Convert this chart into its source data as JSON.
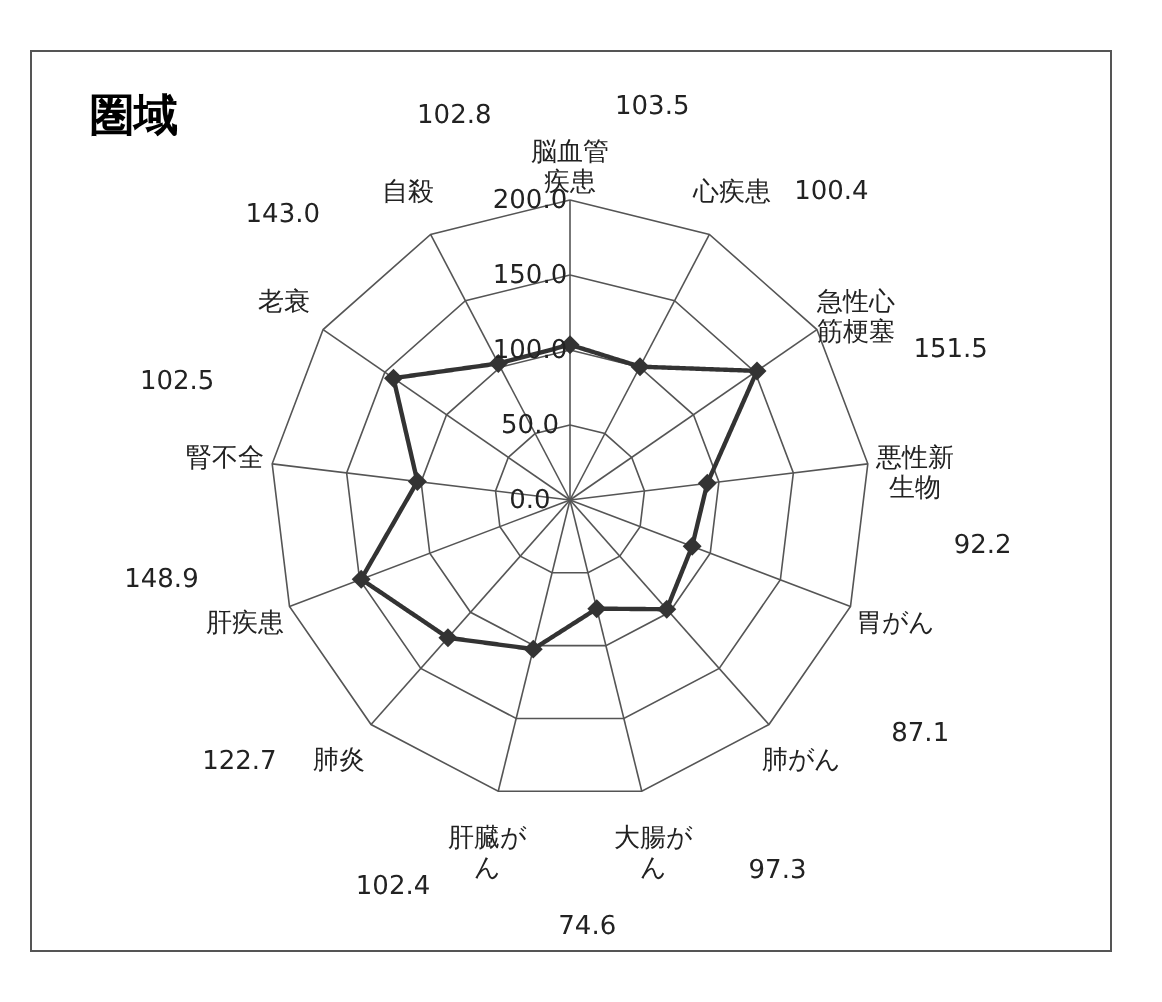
{
  "chart_data": {
    "type": "radar",
    "title": "圏域",
    "categories": [
      "脳血管疾患",
      "心疾患",
      "急性心筋梗塞",
      "悪性新生物",
      "胃がん",
      "肺がん",
      "大腸がん",
      "肝臓がん",
      "肺炎",
      "肝疾患",
      "腎不全",
      "老衰",
      "自殺"
    ],
    "series": [
      {
        "color": "#333333",
        "values": [
          103.5,
          100.4,
          151.5,
          92.2,
          87.1,
          97.3,
          74.6,
          102.4,
          122.7,
          148.9,
          102.5,
          143.0,
          102.8
        ]
      }
    ],
    "annotations": [
      "103.5",
      "100.4",
      "151.5",
      "92.2",
      "87.1",
      "97.3",
      "74.6",
      "102.4",
      "122.7",
      "148.9",
      "102.5",
      "143.0",
      "102.8"
    ],
    "ylim": [
      0,
      200
    ],
    "yticks": [
      {
        "value": 0,
        "label": "0.0"
      },
      {
        "value": 50,
        "label": "50.0"
      },
      {
        "value": 100,
        "label": "100.0"
      },
      {
        "value": 150,
        "label": "150.0"
      },
      {
        "value": 200,
        "label": "200.0"
      }
    ],
    "grid": true,
    "marker": "diamond",
    "line_style": "solid"
  }
}
